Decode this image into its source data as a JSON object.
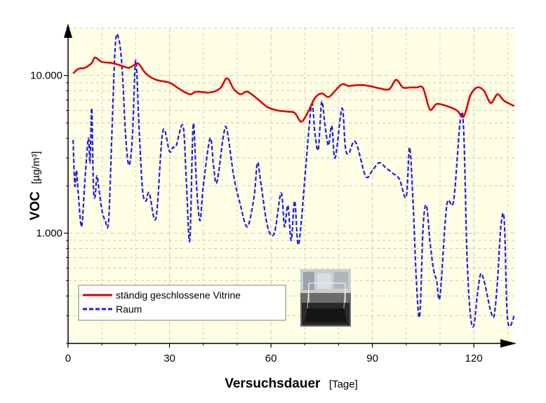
{
  "chart_data": {
    "type": "line",
    "xlabel": "Versuchsdauer",
    "xunit": "[Tage]",
    "ylabel": "VOC",
    "yunit": "[µg/m³]",
    "xlim": [
      0,
      132
    ],
    "ylim": [
      200,
      20000
    ],
    "yscale": "log",
    "xticks": [
      0,
      30,
      60,
      90,
      120
    ],
    "yticks": [
      1000,
      10000
    ],
    "ytick_labels": [
      "1.000",
      "10.000"
    ],
    "grid": true,
    "legend_position": "lower-left",
    "background_color": "#ffffe6",
    "series": [
      {
        "name": "ständig geschlossene Vitrine",
        "color": "#e00000",
        "style": "solid",
        "x": [
          1.5,
          3,
          5,
          7,
          8,
          10,
          13,
          16,
          18,
          20,
          21,
          23,
          26,
          30,
          33,
          36,
          38,
          42,
          45,
          47,
          49,
          51,
          53,
          56,
          59,
          62,
          65,
          67,
          69,
          71,
          73,
          75,
          77,
          79,
          81,
          83,
          86,
          89,
          92,
          95,
          97,
          99,
          101,
          103,
          105,
          107,
          109,
          112,
          115,
          117,
          119,
          121,
          123,
          125,
          127,
          129,
          132
        ],
        "values": [
          10300,
          11000,
          11200,
          12000,
          13000,
          12200,
          12000,
          11500,
          11200,
          11800,
          11800,
          10300,
          9400,
          9000,
          8200,
          7600,
          7900,
          7800,
          8300,
          9600,
          8200,
          7600,
          7900,
          7100,
          6300,
          6000,
          5900,
          5800,
          5100,
          5900,
          7200,
          7700,
          7300,
          8000,
          8800,
          8600,
          8700,
          8600,
          8300,
          8200,
          9400,
          8400,
          8400,
          8400,
          8300,
          6100,
          6600,
          6400,
          6000,
          5500,
          7500,
          8400,
          8000,
          6700,
          7600,
          6900,
          6400
        ]
      },
      {
        "name": "Raum",
        "color": "#1f1fdc",
        "style": "dashed",
        "x": [
          1.5,
          2,
          2.5,
          3,
          4,
          5,
          6,
          6.5,
          7,
          7.5,
          8,
          8.5,
          9,
          10,
          11,
          12,
          13,
          14,
          15,
          16,
          17,
          18,
          19,
          20,
          21,
          22,
          23,
          24,
          26,
          28,
          30,
          31,
          32,
          34,
          35,
          36,
          37,
          38,
          39,
          40,
          42,
          43,
          44,
          46,
          47,
          49,
          51,
          53,
          55,
          56,
          57,
          59,
          61,
          63,
          64,
          65,
          66,
          67,
          68,
          69,
          70,
          72,
          73,
          74,
          75,
          76,
          77,
          78,
          79,
          81,
          82,
          83,
          85,
          88,
          90,
          92,
          94,
          96,
          98,
          100,
          101,
          102,
          103,
          104,
          105,
          106,
          107,
          108,
          109,
          110,
          112,
          114,
          116,
          117,
          118,
          119,
          120,
          121,
          122,
          123,
          124,
          125,
          126,
          127,
          128,
          129,
          130,
          132
        ],
        "values": [
          3900,
          2000,
          2500,
          1800,
          1100,
          2200,
          4000,
          2800,
          6200,
          2000,
          1700,
          2300,
          2000,
          1400,
          1200,
          1200,
          4500,
          16000,
          17000,
          11000,
          4200,
          2700,
          4000,
          12500,
          4600,
          1900,
          1600,
          1800,
          1250,
          4400,
          3300,
          3500,
          3600,
          4800,
          2100,
          900,
          4900,
          2000,
          1200,
          2000,
          4000,
          2700,
          2100,
          4200,
          4500,
          2300,
          1500,
          1100,
          1700,
          2800,
          2100,
          1100,
          1000,
          1800,
          1100,
          1500,
          900,
          1600,
          850,
          1200,
          2200,
          6500,
          4300,
          3400,
          6800,
          4800,
          3600,
          4800,
          3000,
          6200,
          3500,
          3200,
          3800,
          2300,
          2500,
          2800,
          2600,
          2400,
          2200,
          1700,
          3500,
          1600,
          500,
          300,
          1100,
          1500,
          900,
          600,
          500,
          400,
          1500,
          1600,
          5200,
          4500,
          700,
          300,
          260,
          400,
          550,
          500,
          400,
          320,
          300,
          500,
          1100,
          1200,
          280,
          300
        ]
      }
    ]
  },
  "legend": {
    "items": [
      "ständig geschlossene Vitrine",
      "Raum"
    ]
  },
  "inset_photo": {
    "description_color_frame": "#5a5a5a"
  }
}
